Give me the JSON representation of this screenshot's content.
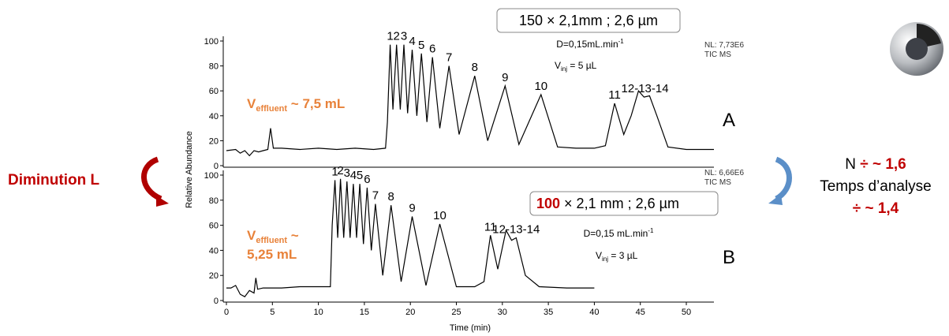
{
  "chart_data": [
    {
      "type": "line",
      "color": "#000000",
      "ylabel": "Relative Abundance",
      "xlim": [
        0,
        53
      ],
      "ylim": [
        0,
        100
      ],
      "yticks": [
        0,
        20,
        40,
        60,
        80,
        100
      ],
      "x": [
        0,
        1,
        1.5,
        2,
        2.5,
        3,
        3.5,
        4,
        4.5,
        4.8,
        5.1,
        6,
        8,
        10,
        12,
        14,
        16,
        17.3,
        17.5,
        17.8,
        18.1,
        18.5,
        18.9,
        19.3,
        19.7,
        20.2,
        20.7,
        21.2,
        21.8,
        22.4,
        23.2,
        24.2,
        25.3,
        27,
        28.4,
        30.3,
        31.8,
        34.2,
        36,
        38,
        40,
        41.2,
        42.2,
        43.2,
        44,
        44.8,
        45.4,
        46,
        46.8,
        48,
        50,
        53
      ],
      "values": [
        12,
        13,
        10,
        12,
        8,
        12,
        11,
        12,
        13,
        30,
        14,
        14,
        13,
        14,
        13,
        14,
        13,
        14,
        35,
        97,
        45,
        97,
        45,
        97,
        42,
        93,
        40,
        90,
        35,
        87,
        30,
        80,
        25,
        72,
        20,
        64,
        17,
        57,
        15,
        14,
        14,
        16,
        50,
        25,
        40,
        60,
        55,
        56,
        40,
        15,
        13,
        13
      ],
      "peaks": [
        {
          "label": "1",
          "x": 17.8
        },
        {
          "label": "2",
          "x": 18.5
        },
        {
          "label": "3",
          "x": 19.3
        },
        {
          "label": "4",
          "x": 20.2
        },
        {
          "label": "5",
          "x": 21.2
        },
        {
          "label": "6",
          "x": 22.4
        },
        {
          "label": "7",
          "x": 24.2
        },
        {
          "label": "8",
          "x": 27
        },
        {
          "label": "9",
          "x": 30.3
        },
        {
          "label": "10",
          "x": 34.2
        },
        {
          "label": "11",
          "x": 42.2
        },
        {
          "label": "12-13-14",
          "x": 45.5
        }
      ]
    },
    {
      "type": "line",
      "color": "#000000",
      "xlabel": "Time (min)",
      "xlim": [
        0,
        53
      ],
      "xticks": [
        0,
        5,
        10,
        15,
        20,
        25,
        30,
        35,
        40,
        45,
        50
      ],
      "ylim": [
        0,
        100
      ],
      "yticks": [
        0,
        20,
        40,
        60,
        80,
        100
      ],
      "x": [
        0,
        0.5,
        1,
        1.5,
        2,
        2.5,
        3,
        3.2,
        3.4,
        4,
        6,
        8,
        10,
        11.3,
        11.5,
        11.8,
        12.1,
        12.4,
        12.75,
        13.1,
        13.45,
        13.8,
        14.15,
        14.5,
        14.9,
        15.3,
        15.75,
        16.2,
        17,
        17.9,
        19,
        20.2,
        21.7,
        23.2,
        25,
        27,
        28,
        28.7,
        29.5,
        30.4,
        31,
        31.5,
        32.5,
        34,
        37,
        40
      ],
      "values": [
        10,
        10,
        12,
        5,
        3,
        8,
        6,
        18,
        9,
        10,
        10,
        11,
        11,
        11,
        60,
        96,
        50,
        97,
        50,
        95,
        50,
        93,
        50,
        93,
        45,
        90,
        40,
        77,
        20,
        76,
        15,
        67,
        12,
        61,
        11,
        11,
        15,
        52,
        25,
        56,
        48,
        50,
        20,
        11,
        10,
        10
      ],
      "peaks": [
        {
          "label": "1",
          "x": 11.8
        },
        {
          "label": "2",
          "x": 12.4
        },
        {
          "label": "3",
          "x": 13.1
        },
        {
          "label": "4",
          "x": 13.8
        },
        {
          "label": "5",
          "x": 14.5
        },
        {
          "label": "6",
          "x": 15.3
        },
        {
          "label": "7",
          "x": 16.2
        },
        {
          "label": "8",
          "x": 17.9
        },
        {
          "label": "9",
          "x": 20.2
        },
        {
          "label": "10",
          "x": 23.2
        },
        {
          "label": "11",
          "x": 28.7
        },
        {
          "label": "12-13-14",
          "x": 31.5
        }
      ]
    }
  ],
  "panel_a": {
    "letter": "A",
    "column": "150 × 2,1mm ; 2,6 µm",
    "flow": "D=0,15mL.min",
    "flow_exp": "-1",
    "vinj": "V",
    "vinj_sub": "inj",
    "vinj_rest": " = 5 µL",
    "nl": "NL: 7,73E6",
    "tic": "TIC  MS",
    "veff": "V",
    "veff_sub": "effluent",
    "veff_rest": " ~ 7,5 mL"
  },
  "panel_b": {
    "letter": "B",
    "column_len": "100",
    "column_rest": " × 2,1 mm ; 2,6 µm",
    "flow": "D=0,15 mL.min",
    "flow_exp": "-1",
    "vinj": "V",
    "vinj_sub": "inj",
    "vinj_rest": " = 3 µL",
    "nl": "NL: 6,66E6",
    "tic": "TIC  MS",
    "veff": "V",
    "veff_sub": "effluent",
    "veff_rest": " ~",
    "veff_line2": "5,25 mL"
  },
  "left_note": "Diminution L",
  "right_note": {
    "n": "N",
    "n_factor": " ÷ ~ 1,6",
    "time": "Temps d’analyse",
    "time_factor": "÷ ~ 1,4"
  }
}
